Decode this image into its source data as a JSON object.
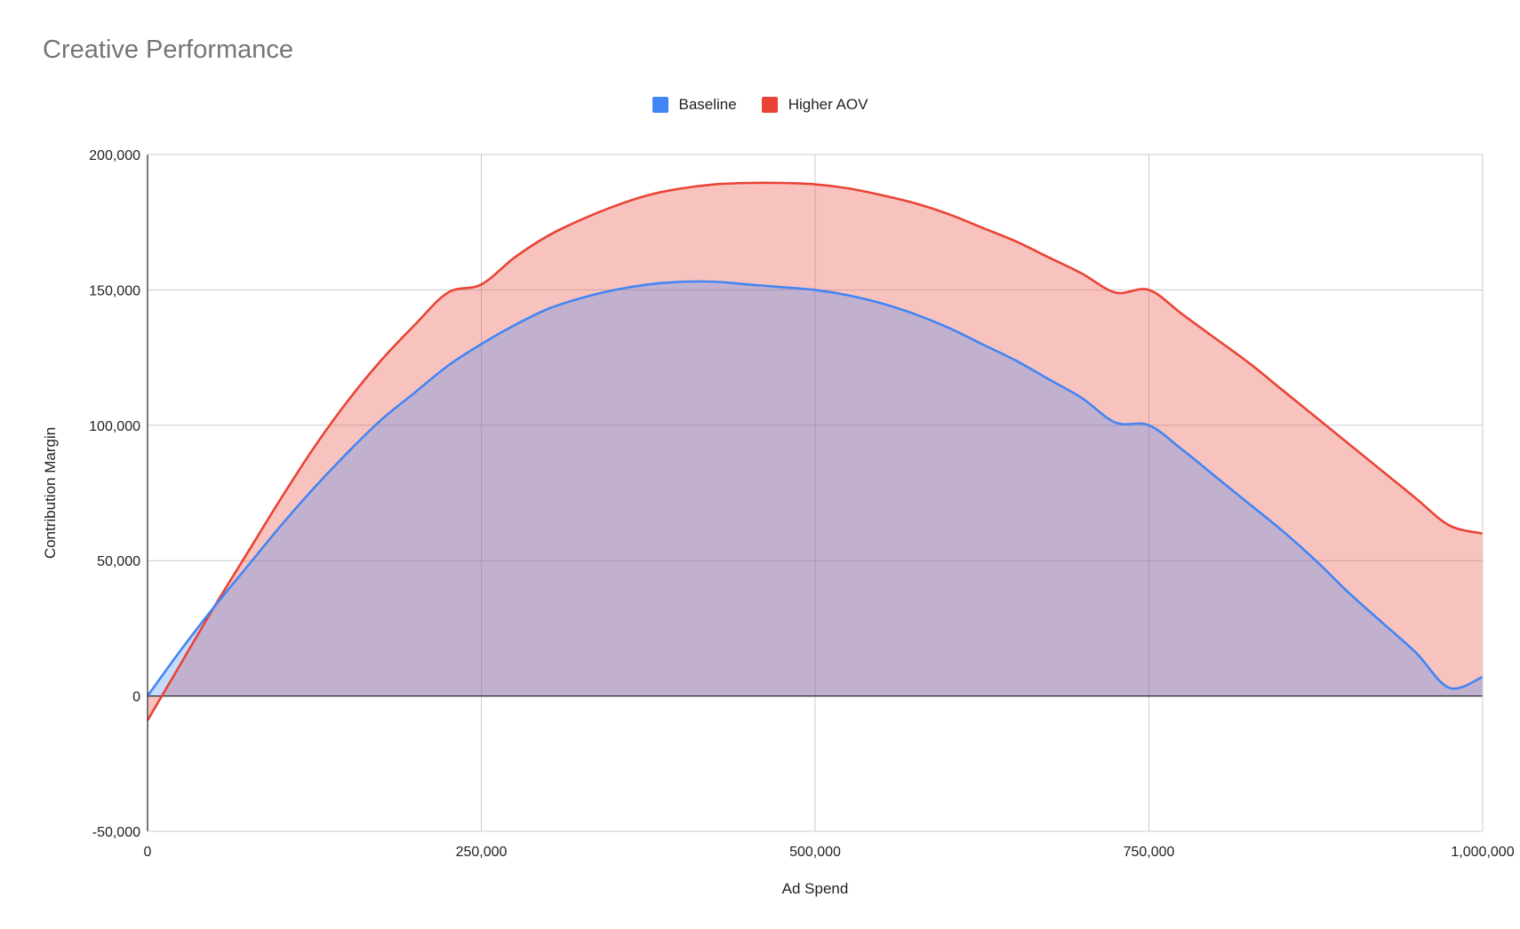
{
  "chart_data": {
    "type": "area",
    "title": "Creative Performance",
    "xlabel": "Ad Spend",
    "ylabel": "Contribution Margin",
    "xlim": [
      0,
      1000000
    ],
    "ylim": [
      -50000,
      200000
    ],
    "x_ticks": [
      0,
      250000,
      500000,
      750000,
      1000000
    ],
    "x_tick_labels": [
      "0",
      "250,000",
      "500,000",
      "750,000",
      "1,000,000"
    ],
    "y_ticks": [
      -50000,
      0,
      50000,
      100000,
      150000,
      200000
    ],
    "y_tick_labels": [
      "-50,000",
      "0",
      "50,000",
      "100,000",
      "150,000",
      "200,000"
    ],
    "grid": true,
    "legend_position": "top-center",
    "x": [
      0,
      25000,
      50000,
      75000,
      100000,
      125000,
      150000,
      175000,
      200000,
      225000,
      250000,
      275000,
      300000,
      325000,
      350000,
      375000,
      400000,
      425000,
      450000,
      475000,
      500000,
      525000,
      550000,
      575000,
      600000,
      625000,
      650000,
      675000,
      700000,
      725000,
      750000,
      775000,
      800000,
      825000,
      850000,
      875000,
      900000,
      925000,
      950000,
      975000,
      1000000
    ],
    "series": [
      {
        "name": "Baseline",
        "color": "#4285f4",
        "fill": "rgba(66,133,244,0.30)",
        "values": [
          0,
          17000,
          33000,
          48000,
          63000,
          77000,
          90000,
          102000,
          112000,
          122000,
          130000,
          137000,
          143000,
          147000,
          150000,
          152000,
          153000,
          153000,
          152000,
          151000,
          150000,
          148000,
          145000,
          141000,
          136000,
          130000,
          124000,
          117000,
          110000,
          101000,
          100000,
          91000,
          81000,
          71000,
          61000,
          50000,
          38000,
          27000,
          16000,
          3000,
          7000
        ]
      },
      {
        "name": "Higher AOV",
        "color": "#ea4335",
        "fill": "rgba(234,67,53,0.32)",
        "values": [
          -9000,
          12000,
          33000,
          53000,
          73000,
          92000,
          109000,
          124000,
          137000,
          149000,
          152000,
          162000,
          170000,
          176000,
          181000,
          185000,
          187500,
          189000,
          189500,
          189500,
          189000,
          187500,
          185000,
          182000,
          178000,
          173000,
          168000,
          162000,
          156000,
          149000,
          150000,
          141000,
          132000,
          123000,
          113000,
          103000,
          93000,
          83000,
          73000,
          63000,
          60000
        ]
      }
    ]
  }
}
